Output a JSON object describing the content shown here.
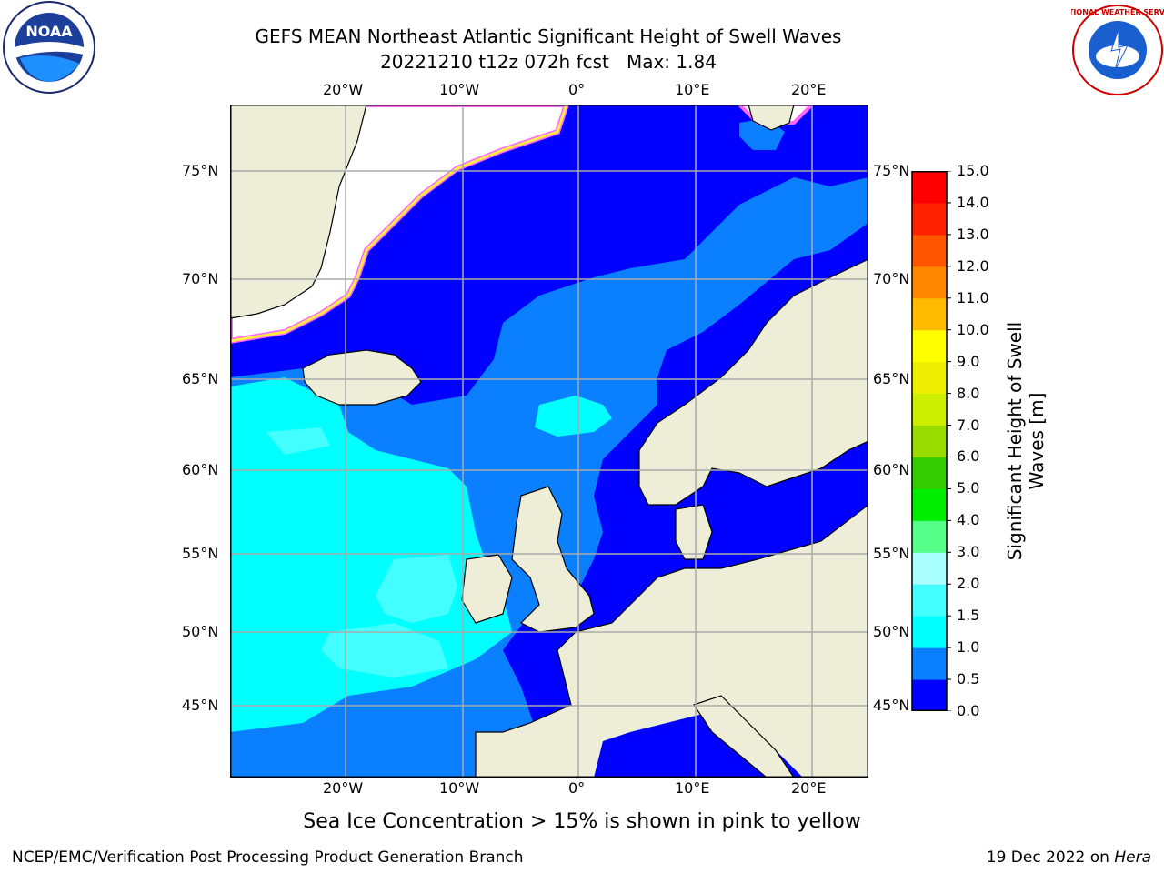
{
  "title": {
    "line1": "GEFS MEAN Northeast Atlantic Significant Height of Swell Waves",
    "line2": "20221210 t12z 072h fcst   Max: 1.84"
  },
  "axes": {
    "lon_top": [
      "20°W",
      "10°W",
      "0°",
      "10°E",
      "20°E"
    ],
    "lon_bottom": [
      "20°W",
      "10°W",
      "0°",
      "10°E",
      "20°E"
    ],
    "lat_left": [
      "75°N",
      "70°N",
      "65°N",
      "60°N",
      "55°N",
      "50°N",
      "45°N"
    ],
    "lat_right": [
      "75°N",
      "70°N",
      "65°N",
      "60°N",
      "55°N",
      "50°N",
      "45°N"
    ]
  },
  "colorbar": {
    "title_line1": "Significant Height of Swell",
    "title_line2": "Waves [m]",
    "ticks": [
      "0.0",
      "0.5",
      "1.0",
      "1.5",
      "2.0",
      "3.0",
      "4.0",
      "5.0",
      "6.0",
      "7.0",
      "8.0",
      "9.0",
      "10.0",
      "11.0",
      "12.0",
      "13.0",
      "14.0",
      "15.0"
    ],
    "colors": [
      "#0000ff",
      "#0a7fff",
      "#00ffff",
      "#44ffff",
      "#aaffff",
      "#55ff88",
      "#00ee00",
      "#33cc00",
      "#99dd00",
      "#ccee00",
      "#eeee00",
      "#ffff00",
      "#ffbb00",
      "#ff8800",
      "#ff5500",
      "#ff2200",
      "#ff0000"
    ]
  },
  "map_colors": {
    "land": "#eeeed8",
    "ice_white": "#ffffff",
    "ice_edge": [
      "#ff66ff",
      "#ffaa55",
      "#ffee44"
    ],
    "coast": "#000000",
    "grid": "#aaaaaa"
  },
  "caption": "Sea Ice Concentration > 15% is shown in pink to yellow",
  "footer": {
    "left": "NCEP/EMC/Verification Post Processing Product Generation Branch",
    "right_prefix": "19 Dec 2022 on ",
    "right_host": "Hera"
  },
  "logos": {
    "left": "NOAA",
    "right": "NATIONAL WEATHER SERVICE"
  }
}
